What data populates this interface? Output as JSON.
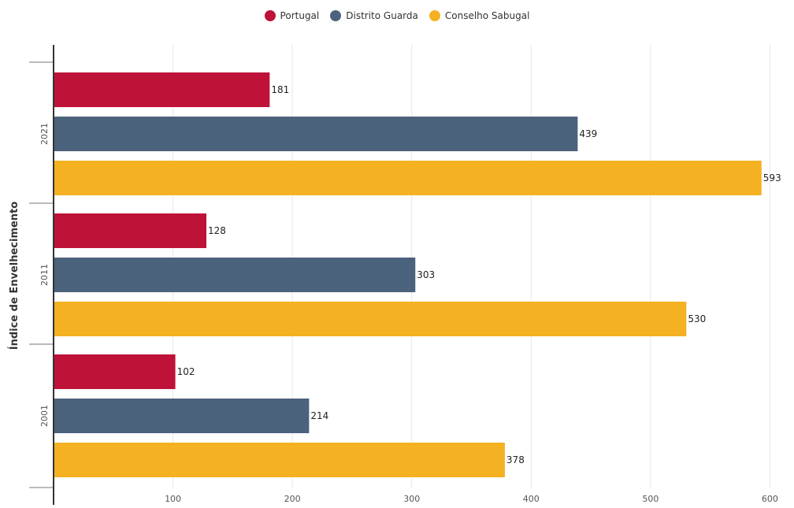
{
  "chart_data": {
    "type": "bar",
    "orientation": "horizontal",
    "categories": [
      "2021",
      "2011",
      "2001"
    ],
    "series": [
      {
        "name": "Portugal",
        "color": "#be1239",
        "values": [
          181,
          128,
          102
        ]
      },
      {
        "name": "Distrito Guarda",
        "color": "#4b627c",
        "values": [
          439,
          303,
          214
        ]
      },
      {
        "name": "Conselho Sabugal",
        "color": "#f4b122",
        "values": [
          593,
          530,
          378
        ]
      }
    ],
    "ylabel": "Índice de Envelhecimento",
    "xlabel": "",
    "xlim": [
      0,
      605
    ],
    "xticks": [
      "100",
      "200",
      "300",
      "400",
      "500",
      "600"
    ],
    "grid": true,
    "legend_position": "top-center"
  }
}
